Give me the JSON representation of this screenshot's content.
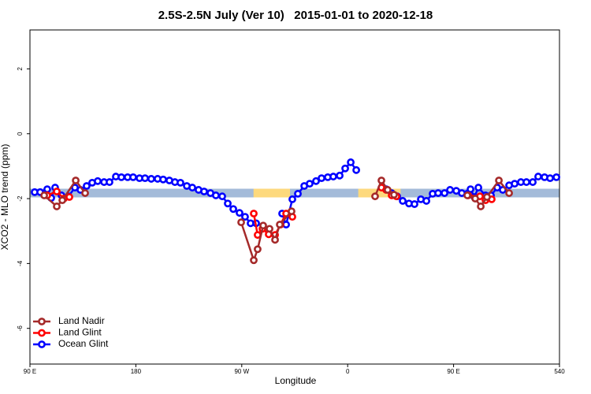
{
  "chart_data": {
    "type": "line",
    "title": "2.5S-2.5N July (Ver 10)   2015-01-01 to 2020-12-18",
    "xlabel": "Longitude",
    "ylabel": "XCO2 - MLO trend (ppm)",
    "xlim": [
      90,
      540
    ],
    "ylim": [
      -7.1,
      3.2
    ],
    "xticks": [
      {
        "value": 90,
        "label": "90 E"
      },
      180,
      {
        "value": 270,
        "label": "90 W"
      },
      {
        "value": 360,
        "label": "0"
      },
      {
        "value": 450,
        "label": "90 E"
      },
      540
    ],
    "yticks": [
      -6,
      -4,
      -2,
      0,
      2
    ],
    "legend": "bottom-left",
    "band": {
      "value": -1.83,
      "color": "#a4bbd9",
      "highlights": [
        {
          "xlim": [
            280,
            311
          ],
          "color": "#fdd97d"
        },
        {
          "xlim": [
            369,
            405
          ],
          "color": "#fdd97d"
        }
      ]
    },
    "series": [
      {
        "name": "Land Nadir",
        "color": "#a52a2a",
        "x": [
          102.1,
          112.8,
          117.5,
          128.9,
          136.9,
          null,
          269.5,
          280.2,
          283.5,
          288.2,
          293.6,
          298.3,
          302.3,
          312.3,
          null,
          383.3,
          388.7,
          394.0,
          399.4,
          null,
          461.7,
          468.4,
          473.1,
          478.4,
          488.5,
          497.2
        ],
        "values": [
          -1.9,
          -2.24,
          -2.05,
          -1.44,
          -1.83,
          null,
          -2.73,
          -3.9,
          -3.56,
          -2.83,
          -2.93,
          -3.27,
          -2.8,
          -2.39,
          null,
          -1.93,
          -1.44,
          -1.73,
          -1.88,
          null,
          -1.9,
          -2.0,
          -2.24,
          -1.95,
          -1.44,
          -1.83
        ]
      },
      {
        "name": "Land Glint",
        "color": "#ff0000",
        "x": [
          104.7,
          112.8,
          118.8,
          123.5,
          null,
          280.2,
          283.5,
          287.6,
          292.9,
          298.3,
          302.9,
          307.7,
          313.0,
          null,
          388.7,
          392.7,
          397.4,
          401.4,
          null,
          462.4,
          472.4,
          477.1,
          482.4
        ],
        "values": [
          -1.9,
          -1.78,
          -2.0,
          -1.95,
          null,
          -2.46,
          -3.12,
          -2.93,
          -3.1,
          -3.12,
          -2.8,
          -2.46,
          -2.56,
          null,
          -1.66,
          -1.73,
          -1.9,
          -1.93,
          null,
          -1.9,
          -1.93,
          -2.05,
          -2.02
        ]
      },
      {
        "name": "Ocean Glint",
        "color": "#0000ff",
        "x": [
          94.0,
          98.7,
          104.7,
          108.1,
          111.4,
          116.8,
          122.8,
          128.2,
          132.9,
          138.2,
          142.9,
          147.6,
          153.0,
          157.6,
          163.0,
          167.7,
          173.0,
          177.7,
          183.1,
          187.8,
          193.1,
          198.5,
          203.2,
          208.5,
          213.2,
          217.9,
          223.3,
          228.0,
          233.3,
          238.0,
          243.4,
          248.0,
          253.4,
          258.1,
          262.8,
          268.1,
          272.8,
          277.5,
          282.2,
          null,
          304.3,
          307.7,
          313.0,
          317.7,
          323.1,
          327.7,
          333.1,
          337.8,
          343.1,
          347.8,
          353.2,
          357.9,
          362.6,
          367.3,
          null,
          392.7,
          397.4,
          402.1,
          406.8,
          412.1,
          416.8,
          422.2,
          426.9,
          432.2,
          436.9,
          442.3,
          447.0,
          452.3,
          457.0,
          464.4,
          467.7,
          471.1,
          477.1,
          481.8,
          487.1,
          491.8,
          497.2,
          501.9,
          507.2,
          511.9,
          517.3,
          521.9,
          527.3,
          532.0,
          537.4
        ],
        "values": [
          -1.8,
          -1.8,
          -1.71,
          -1.98,
          -1.66,
          -1.9,
          -1.93,
          -1.66,
          -1.73,
          -1.61,
          -1.51,
          -1.46,
          -1.49,
          -1.49,
          -1.32,
          -1.34,
          -1.34,
          -1.34,
          -1.37,
          -1.37,
          -1.39,
          -1.39,
          -1.41,
          -1.44,
          -1.49,
          -1.51,
          -1.61,
          -1.66,
          -1.73,
          -1.78,
          -1.83,
          -1.9,
          -1.93,
          -2.15,
          -2.32,
          -2.44,
          -2.56,
          -2.76,
          -2.76,
          null,
          -2.46,
          -2.8,
          -2.02,
          -1.85,
          -1.61,
          -1.54,
          -1.46,
          -1.37,
          -1.34,
          -1.32,
          -1.29,
          -1.07,
          -0.88,
          -1.12,
          null,
          -1.71,
          -1.83,
          -1.93,
          -2.07,
          -2.15,
          -2.17,
          -2.02,
          -2.07,
          -1.85,
          -1.83,
          -1.83,
          -1.73,
          -1.76,
          -1.83,
          -1.71,
          -1.95,
          -1.66,
          -1.9,
          -1.9,
          -1.66,
          -1.73,
          -1.59,
          -1.54,
          -1.49,
          -1.49,
          -1.49,
          -1.32,
          -1.34,
          -1.37,
          -1.34
        ]
      }
    ]
  }
}
